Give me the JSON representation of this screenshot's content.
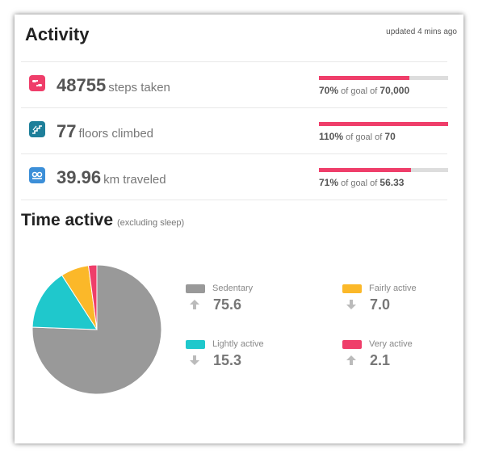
{
  "header": {
    "title": "Activity",
    "updated": "updated 4 mins ago"
  },
  "stats": [
    {
      "icon": "steps-icon",
      "color": "#ef3e6a",
      "value": "48755",
      "label": "steps taken",
      "progress": 0.7,
      "percent": "70%",
      "goal_text": "of goal of",
      "goal": "70,000"
    },
    {
      "icon": "stairs-icon",
      "color": "#1e7f9a",
      "value": "77",
      "label": "floors climbed",
      "progress": 1.0,
      "percent": "110%",
      "goal_text": "of goal of",
      "goal": "70"
    },
    {
      "icon": "distance-icon",
      "color": "#3c8fd8",
      "value": "39.96",
      "label": "km traveled",
      "progress": 0.71,
      "percent": "71%",
      "goal_text": "of goal of",
      "goal": "56.33"
    }
  ],
  "time_active": {
    "title": "Time active",
    "subtitle": "(excluding sleep)"
  },
  "chart_data": {
    "type": "pie",
    "series": [
      {
        "name": "Sedentary",
        "value": 75.6,
        "color": "#999999",
        "trend": "up"
      },
      {
        "name": "Lightly active",
        "value": 15.3,
        "color": "#1fc8cc",
        "trend": "down"
      },
      {
        "name": "Fairly active",
        "value": 7.0,
        "color": "#fbb829",
        "trend": "down"
      },
      {
        "name": "Very active",
        "value": 2.1,
        "color": "#ef3e6a",
        "trend": "up"
      }
    ]
  },
  "legend": [
    {
      "label": "Sedentary",
      "value": "75.6"
    },
    {
      "label": "Fairly active",
      "value": "7.0"
    },
    {
      "label": "Lightly active",
      "value": "15.3"
    },
    {
      "label": "Very active",
      "value": "2.1"
    }
  ],
  "colors": {
    "accent": "#ef3e6a",
    "bar_track": "#dddddd"
  }
}
